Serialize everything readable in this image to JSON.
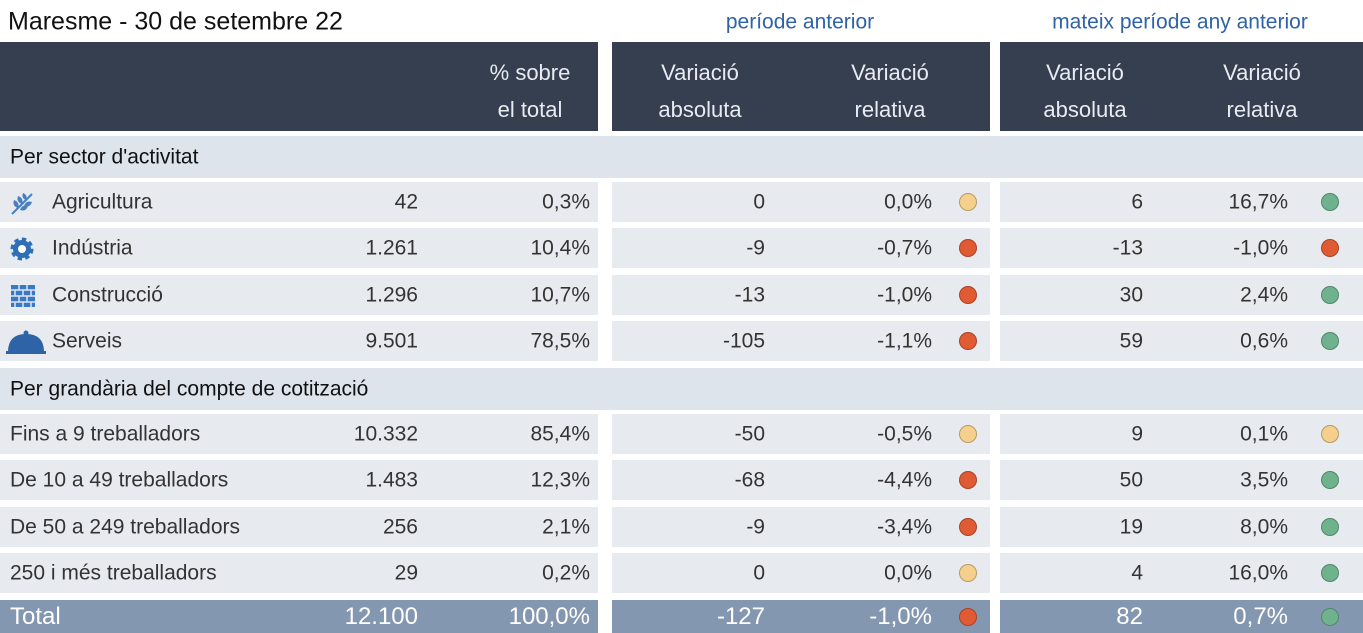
{
  "title": "Maresme - 30 de setembre 22",
  "group_headers": [
    "període anterior",
    "mateix període any anterior"
  ],
  "columns": [
    [
      "% sobre",
      "el total"
    ],
    [
      "Variació",
      "absoluta"
    ],
    [
      "Variació",
      "relativa"
    ],
    [
      "Variació",
      "absoluta"
    ],
    [
      "Variació",
      "relativa"
    ]
  ],
  "sections": [
    {
      "title": "Per sector d'activitat",
      "rows": [
        {
          "label": "Agricultura",
          "count": "42",
          "share": "0,3%",
          "prev_abs": "0",
          "prev_rel": "0,0%",
          "prev_color": "#f5cf8c",
          "year_abs": "6",
          "year_rel": "16,7%",
          "year_color": "#6fb38e"
        },
        {
          "label": "Indústria",
          "count": "1.261",
          "share": "10,4%",
          "prev_abs": "-9",
          "prev_rel": "-0,7%",
          "prev_color": "#e05a33",
          "year_abs": "-13",
          "year_rel": "-1,0%",
          "year_color": "#e05a33"
        },
        {
          "label": "Construcció",
          "count": "1.296",
          "share": "10,7%",
          "prev_abs": "-13",
          "prev_rel": "-1,0%",
          "prev_color": "#e05a33",
          "year_abs": "30",
          "year_rel": "2,4%",
          "year_color": "#6fb38e"
        },
        {
          "label": "Serveis",
          "count": "9.501",
          "share": "78,5%",
          "prev_abs": "-105",
          "prev_rel": "-1,1%",
          "prev_color": "#e05a33",
          "year_abs": "59",
          "year_rel": "0,6%",
          "year_color": "#6fb38e"
        }
      ]
    },
    {
      "title": "Per grandària del compte de cotització",
      "rows": [
        {
          "label": "Fins a 9 treballadors",
          "count": "10.332",
          "share": "85,4%",
          "prev_abs": "-50",
          "prev_rel": "-0,5%",
          "prev_color": "#f5cf8c",
          "year_abs": "9",
          "year_rel": "0,1%",
          "year_color": "#f5cf8c"
        },
        {
          "label": "De 10 a 49 treballadors",
          "count": "1.483",
          "share": "12,3%",
          "prev_abs": "-68",
          "prev_rel": "-4,4%",
          "prev_color": "#e05a33",
          "year_abs": "50",
          "year_rel": "3,5%",
          "year_color": "#6fb38e"
        },
        {
          "label": "De 50 a 249 treballadors",
          "count": "256",
          "share": "2,1%",
          "prev_abs": "-9",
          "prev_rel": "-3,4%",
          "prev_color": "#e05a33",
          "year_abs": "19",
          "year_rel": "8,0%",
          "year_color": "#6fb38e"
        },
        {
          "label": "250 i més treballadors",
          "count": "29",
          "share": "0,2%",
          "prev_abs": "0",
          "prev_rel": "0,0%",
          "prev_color": "#f5cf8c",
          "year_abs": "4",
          "year_rel": "16,0%",
          "year_color": "#6fb38e"
        }
      ]
    }
  ],
  "total": {
    "label": "Total",
    "count": "12.100",
    "share": "100,0%",
    "prev_abs": "-127",
    "prev_rel": "-1,0%",
    "prev_color": "#e05a33",
    "year_abs": "82",
    "year_rel": "0,7%",
    "year_color": "#6fb38e"
  }
}
